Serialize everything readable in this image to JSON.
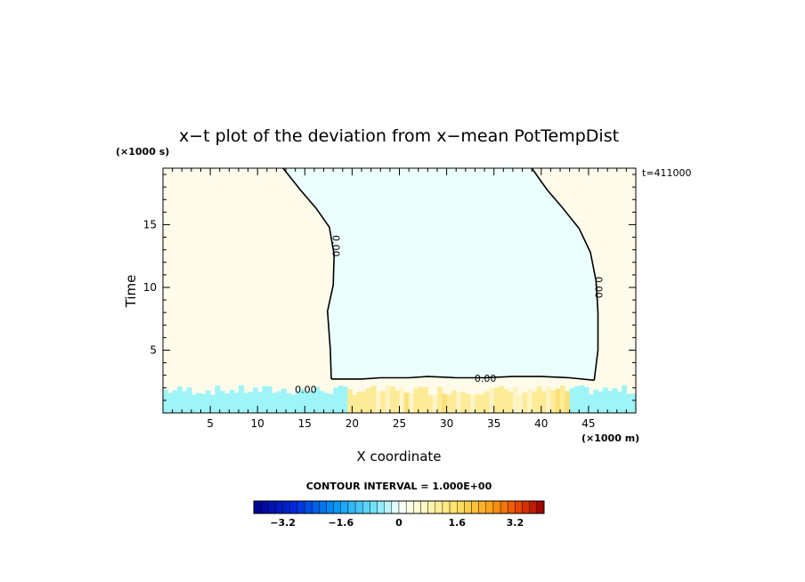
{
  "chart_data": {
    "type": "heatmap",
    "title": "x−t plot of the deviation from x−mean PotTempDist",
    "xlabel": "X coordinate",
    "ylabel": "Time",
    "x_units": "(×1000 m)",
    "y_units": "(×1000 s)",
    "time_stamp": "t=411000",
    "xlim": [
      0,
      50
    ],
    "ylim": [
      0,
      19.5
    ],
    "x_ticks": [
      5,
      10,
      15,
      20,
      25,
      30,
      35,
      40,
      45
    ],
    "y_ticks": [
      5,
      10,
      15
    ],
    "contour_label": "0.00",
    "contour_interval_text": "CONTOUR INTERVAL = 1.000E+00",
    "zero_contour_left": [
      [
        12.7,
        19.5
      ],
      [
        14.5,
        17.8
      ],
      [
        16.2,
        16.3
      ],
      [
        17.6,
        14.8
      ],
      [
        18.1,
        12.6
      ],
      [
        18.0,
        10.2
      ],
      [
        17.4,
        8.1
      ],
      [
        17.7,
        5.0
      ],
      [
        17.8,
        2.7
      ]
    ],
    "zero_contour_right": [
      [
        39.0,
        19.5
      ],
      [
        40.6,
        17.8
      ],
      [
        42.3,
        16.3
      ],
      [
        44.0,
        14.7
      ],
      [
        45.2,
        12.8
      ],
      [
        45.8,
        10.5
      ],
      [
        46.0,
        8.0
      ],
      [
        46.0,
        5.0
      ],
      [
        45.6,
        2.6
      ]
    ],
    "zero_contour_bottom": [
      [
        17.8,
        2.7
      ],
      [
        21,
        2.7
      ],
      [
        23,
        2.8
      ],
      [
        26,
        2.8
      ],
      [
        28,
        2.9
      ],
      [
        31,
        2.8
      ],
      [
        34,
        2.8
      ],
      [
        37,
        2.9
      ],
      [
        40,
        2.9
      ],
      [
        43,
        2.8
      ],
      [
        45.6,
        2.6
      ]
    ],
    "colorbar": {
      "min": -4.0,
      "max": 4.0,
      "ticks": [
        -3.2,
        -1.6,
        0,
        1.6,
        3.2
      ],
      "tick_labels": [
        "−3.2",
        "−1.6",
        "0",
        "1.6",
        "3.2"
      ]
    },
    "field_summary": {
      "region_left_value": 0.2,
      "region_center_value": -0.2,
      "region_right_value": 0.2,
      "bottom_band_value": -0.8,
      "bottom_warm_value": 0.9
    }
  }
}
